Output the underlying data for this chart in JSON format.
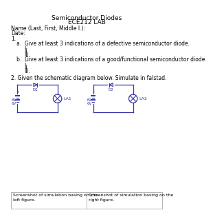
{
  "title_line1": "Semiconductor Diodes",
  "title_line2": "ECE212 LAB",
  "name_label": "Name (Last, First, Middle I.):",
  "date_label": "Date:",
  "q1_label": "1.",
  "q1a_label": "a.  Give at least 3 indications of a defective semiconductor diode.",
  "q1a_items": [
    "i.",
    "ii.",
    "iii."
  ],
  "q1b_label": "b.  Give at least 3 indications of a good/functional semiconductor diode.",
  "q1b_items": [
    "i.",
    "ii.",
    "iii."
  ],
  "q2_label": "2. Given the schematic diagram below. Simulate in falstad.",
  "screenshot_left": "Screenshot of simulation basing on the\nleft figure.",
  "screenshot_right": "Screenshot of simulation basing on the\nright figure.",
  "circuit_color": "#3333aa",
  "bg_color": "#ffffff",
  "text_color": "#000000"
}
